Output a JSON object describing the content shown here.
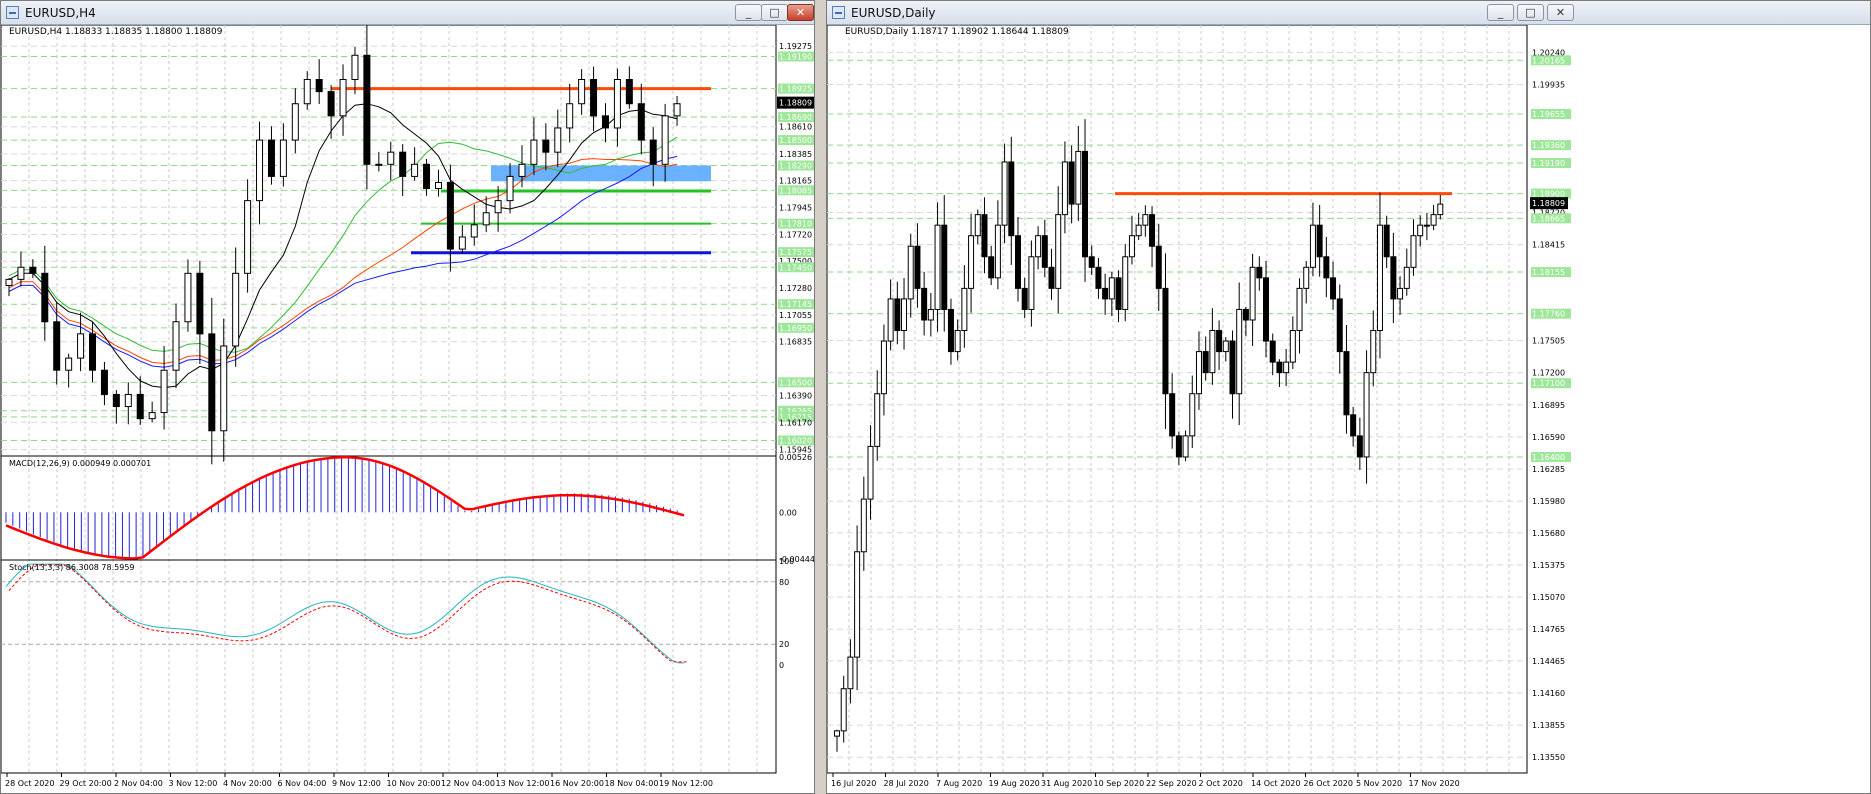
{
  "left_window": {
    "title": "EURUSD,H4",
    "header": "EURUSD,H4  1.18833 1.18835 1.18800 1.18809",
    "macd_label": "MACD(12,26,9) 0.000949 0.000701",
    "stoch_label": "Stoch(13,3,3) 86.3008 78.5959",
    "price_labels": [
      {
        "v": 1.19275,
        "t": "1.19275",
        "g": false
      },
      {
        "v": 1.1919,
        "t": "1.19190",
        "g": true
      },
      {
        "v": 1.18925,
        "t": "1.18925",
        "g": true
      },
      {
        "v": 1.1869,
        "t": "1.18690",
        "g": true
      },
      {
        "v": 1.1861,
        "t": "1.18610",
        "g": false
      },
      {
        "v": 1.185,
        "t": "1.18500",
        "g": true
      },
      {
        "v": 1.18385,
        "t": "1.18385",
        "g": false
      },
      {
        "v": 1.1829,
        "t": "1.18290",
        "g": true
      },
      {
        "v": 1.18165,
        "t": "1.18165",
        "g": false
      },
      {
        "v": 1.18085,
        "t": "1.18085",
        "g": true
      },
      {
        "v": 1.17945,
        "t": "1.17945",
        "g": false
      },
      {
        "v": 1.1781,
        "t": "1.17810",
        "g": true
      },
      {
        "v": 1.1772,
        "t": "1.17720",
        "g": false
      },
      {
        "v": 1.17575,
        "t": "1.17575",
        "g": true
      },
      {
        "v": 1.175,
        "t": "1.17500",
        "g": false
      },
      {
        "v": 1.1745,
        "t": "1.17450",
        "g": true
      },
      {
        "v": 1.1728,
        "t": "1.17280",
        "g": false
      },
      {
        "v": 1.17145,
        "t": "1.17145",
        "g": true
      },
      {
        "v": 1.17055,
        "t": "1.17055",
        "g": false
      },
      {
        "v": 1.1695,
        "t": "1.16950",
        "g": true
      },
      {
        "v": 1.16835,
        "t": "1.16835",
        "g": false
      },
      {
        "v": 1.165,
        "t": "1.16500",
        "g": true
      },
      {
        "v": 1.1639,
        "t": "1.16390",
        "g": false
      },
      {
        "v": 1.16265,
        "t": "1.16265",
        "g": true
      },
      {
        "v": 1.16215,
        "t": "1.16215",
        "g": true
      },
      {
        "v": 1.1617,
        "t": "1.16170",
        "g": false
      },
      {
        "v": 1.1602,
        "t": "1.16020",
        "g": true
      },
      {
        "v": 1.15945,
        "t": "1.15945",
        "g": false
      }
    ],
    "current_price": "1.18809",
    "macd_labels": [
      "0.00526",
      "0.00",
      "-0.004443"
    ],
    "stoch_labels": [
      "100",
      "80",
      "20",
      "0"
    ],
    "time_labels": [
      "28 Oct 2020",
      "29 Oct 20:00",
      "2 Nov 04:00",
      "3 Nov 12:00",
      "4 Nov 20:00",
      "6 Nov 04:00",
      "9 Nov 12:00",
      "10 Nov 20:00",
      "12 Nov 04:00",
      "13 Nov 12:00",
      "16 Nov 20:00",
      "18 Nov 04:00",
      "19 Nov 12:00"
    ]
  },
  "right_window": {
    "title": "EURUSD,Daily",
    "header": "EURUSD,Daily  1.18717 1.18902 1.18644 1.18809",
    "price_labels": [
      {
        "v": 1.2024,
        "t": "1.20240",
        "g": false
      },
      {
        "v": 1.20165,
        "t": "1.20165",
        "g": true
      },
      {
        "v": 1.19935,
        "t": "1.19935",
        "g": false
      },
      {
        "v": 1.19655,
        "t": "1.19655",
        "g": true
      },
      {
        "v": 1.1936,
        "t": "1.19360",
        "g": true
      },
      {
        "v": 1.1919,
        "t": "1.19190",
        "g": true
      },
      {
        "v": 1.189,
        "t": "1.18900",
        "g": true
      },
      {
        "v": 1.1872,
        "t": "1.18720",
        "g": false
      },
      {
        "v": 1.18665,
        "t": "1.18665",
        "g": true
      },
      {
        "v": 1.18415,
        "t": "1.18415",
        "g": false
      },
      {
        "v": 1.18155,
        "t": "1.18155",
        "g": true
      },
      {
        "v": 1.1776,
        "t": "1.17760",
        "g": true
      },
      {
        "v": 1.17505,
        "t": "1.17505",
        "g": false
      },
      {
        "v": 1.172,
        "t": "1.17200",
        "g": false
      },
      {
        "v": 1.171,
        "t": "1.17100",
        "g": true
      },
      {
        "v": 1.16895,
        "t": "1.16895",
        "g": false
      },
      {
        "v": 1.1659,
        "t": "1.16590",
        "g": false
      },
      {
        "v": 1.164,
        "t": "1.16400",
        "g": true
      },
      {
        "v": 1.16285,
        "t": "1.16285",
        "g": false
      },
      {
        "v": 1.1598,
        "t": "1.15980",
        "g": false
      },
      {
        "v": 1.1568,
        "t": "1.15680",
        "g": false
      },
      {
        "v": 1.15375,
        "t": "1.15375",
        "g": false
      },
      {
        "v": 1.1507,
        "t": "1.15070",
        "g": false
      },
      {
        "v": 1.14765,
        "t": "1.14765",
        "g": false
      },
      {
        "v": 1.14465,
        "t": "1.14465",
        "g": false
      },
      {
        "v": 1.1416,
        "t": "1.14160",
        "g": false
      },
      {
        "v": 1.13855,
        "t": "1.13855",
        "g": false
      },
      {
        "v": 1.1355,
        "t": "1.13550",
        "g": false
      }
    ],
    "current_price": "1.18809",
    "time_labels": [
      "16 Jul 2020",
      "28 Jul 2020",
      "7 Aug 2020",
      "19 Aug 2020",
      "31 Aug 2020",
      "10 Sep 2020",
      "22 Sep 2020",
      "2 Oct 2020",
      "14 Oct 2020",
      "26 Oct 2020",
      "5 Nov 2020",
      "17 Nov 2020"
    ]
  },
  "chart_data": [
    {
      "type": "candlestick",
      "title": "EURUSD,H4",
      "ylim": [
        1.159,
        1.1945
      ],
      "levels": {
        "resistance": 1.18925,
        "blue_zone": [
          1.1816,
          1.1829
        ],
        "green_zone_top": 1.1808,
        "green_line": 1.1781,
        "blue_line": 1.1757
      },
      "close_series": [
        1.1735,
        1.1745,
        1.174,
        1.17,
        1.166,
        1.167,
        1.169,
        1.166,
        1.164,
        1.163,
        1.164,
        1.162,
        1.1625,
        1.166,
        1.17,
        1.174,
        1.169,
        1.161,
        1.168,
        1.174,
        1.18,
        1.185,
        1.182,
        1.185,
        1.188,
        1.19,
        1.189,
        1.187,
        1.19,
        1.192,
        1.183,
        1.183,
        1.184,
        1.182,
        1.183,
        1.181,
        1.1815,
        1.176,
        1.177,
        1.178,
        1.179,
        1.18,
        1.182,
        1.183,
        1.185,
        1.184,
        1.186,
        1.188,
        1.19,
        1.187,
        1.186,
        1.19,
        1.188,
        1.185,
        1.183,
        1.187,
        1.188
      ],
      "macd_range": [
        -0.004443,
        0.00526
      ],
      "stoch_range": [
        0,
        100
      ]
    },
    {
      "type": "candlestick",
      "title": "EURUSD,Daily",
      "ylim": [
        1.134,
        1.205
      ],
      "levels": {
        "resistance": 1.189
      },
      "close_series": [
        1.138,
        1.142,
        1.145,
        1.155,
        1.16,
        1.165,
        1.17,
        1.175,
        1.179,
        1.176,
        1.179,
        1.184,
        1.18,
        1.177,
        1.178,
        1.186,
        1.178,
        1.174,
        1.176,
        1.18,
        1.185,
        1.187,
        1.183,
        1.181,
        1.186,
        1.192,
        1.185,
        1.18,
        1.178,
        1.183,
        1.185,
        1.182,
        1.18,
        1.187,
        1.192,
        1.188,
        1.193,
        1.183,
        1.182,
        1.18,
        1.179,
        1.181,
        1.178,
        1.183,
        1.185,
        1.186,
        1.187,
        1.184,
        1.18,
        1.17,
        1.166,
        1.164,
        1.166,
        1.17,
        1.174,
        1.172,
        1.176,
        1.174,
        1.175,
        1.17,
        1.178,
        1.177,
        1.182,
        1.181,
        1.175,
        1.173,
        1.172,
        1.173,
        1.176,
        1.18,
        1.182,
        1.186,
        1.183,
        1.181,
        1.179,
        1.174,
        1.168,
        1.166,
        1.164,
        1.172,
        1.176,
        1.186,
        1.183,
        1.179,
        1.18,
        1.182,
        1.185,
        1.186,
        1.186,
        1.187,
        1.188
      ]
    }
  ]
}
